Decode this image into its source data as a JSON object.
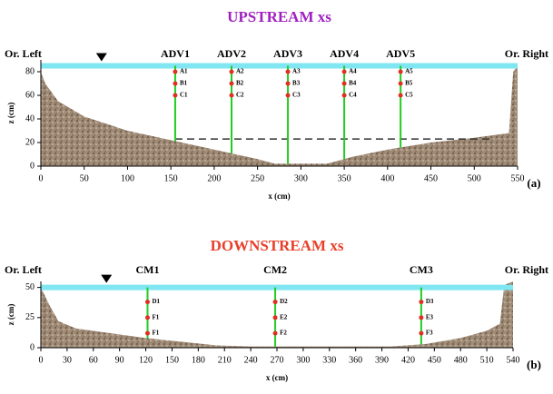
{
  "chart_data": [
    {
      "type": "area",
      "title": "UPSTREAM xs",
      "title_color": "#a020c0",
      "xlabel": "x (cm)",
      "ylabel": "z (cm)",
      "panel_label": "(a)",
      "left_label": "Or. Left",
      "right_label": "Or. Right",
      "xlim": [
        0,
        550
      ],
      "xticks": [
        0,
        50,
        100,
        150,
        200,
        250,
        300,
        350,
        400,
        450,
        500,
        550
      ],
      "ylim": [
        0,
        90
      ],
      "yticks": [
        0,
        20,
        40,
        60,
        80
      ],
      "x": [
        0,
        5,
        20,
        50,
        100,
        150,
        200,
        250,
        270,
        300,
        330,
        360,
        400,
        450,
        500,
        540,
        545,
        550
      ],
      "values": [
        80,
        70,
        55,
        42,
        30,
        22,
        14,
        6,
        2,
        2,
        2,
        8,
        14,
        20,
        24,
        28,
        80,
        85
      ],
      "water_level": 85,
      "surface_marker_x": 70,
      "reference_line": {
        "y": 23,
        "x": [
          155,
          520
        ]
      },
      "verticals": [
        {
          "name": "ADV1",
          "x": 155,
          "points": [
            {
              "label": "A1",
              "z": 80
            },
            {
              "label": "B1",
              "z": 70
            },
            {
              "label": "C1",
              "z": 60
            }
          ]
        },
        {
          "name": "ADV2",
          "x": 220,
          "points": [
            {
              "label": "A2",
              "z": 80
            },
            {
              "label": "B2",
              "z": 70
            },
            {
              "label": "C2",
              "z": 60
            }
          ]
        },
        {
          "name": "ADV3",
          "x": 285,
          "points": [
            {
              "label": "A3",
              "z": 80
            },
            {
              "label": "B3",
              "z": 70
            },
            {
              "label": "C3",
              "z": 60
            }
          ]
        },
        {
          "name": "ADV4",
          "x": 350,
          "points": [
            {
              "label": "A4",
              "z": 80
            },
            {
              "label": "B4",
              "z": 70
            },
            {
              "label": "C4",
              "z": 60
            }
          ]
        },
        {
          "name": "ADV5",
          "x": 415,
          "points": [
            {
              "label": "A5",
              "z": 80
            },
            {
              "label": "B5",
              "z": 70
            },
            {
              "label": "C5",
              "z": 60
            }
          ]
        }
      ]
    },
    {
      "type": "area",
      "title": "DOWNSTREAM xs",
      "title_color": "#e8402a",
      "xlabel": "x (cm)",
      "ylabel": "z (cm)",
      "panel_label": "(b)",
      "left_label": "Or. Left",
      "right_label": "Or. Right",
      "xlim": [
        0,
        540
      ],
      "xticks": [
        0,
        30,
        60,
        90,
        120,
        150,
        180,
        210,
        240,
        270,
        300,
        330,
        360,
        390,
        420,
        450,
        480,
        510,
        540
      ],
      "ylim": [
        0,
        55
      ],
      "yticks": [
        0,
        25,
        50
      ],
      "x": [
        0,
        10,
        20,
        40,
        80,
        120,
        160,
        200,
        240,
        400,
        440,
        480,
        510,
        525,
        530,
        540
      ],
      "values": [
        50,
        35,
        22,
        16,
        12,
        8,
        5,
        2,
        1,
        1,
        3,
        8,
        14,
        20,
        52,
        55
      ],
      "water_level": 50,
      "surface_marker_x": 75,
      "verticals": [
        {
          "name": "CM1",
          "x": 122,
          "points": [
            {
              "label": "D1",
              "z": 38
            },
            {
              "label": "F1",
              "z": 25
            },
            {
              "label": "F1",
              "z": 12
            }
          ]
        },
        {
          "name": "CM2",
          "x": 268,
          "points": [
            {
              "label": "D2",
              "z": 38
            },
            {
              "label": "E2",
              "z": 25
            },
            {
              "label": "F2",
              "z": 12
            }
          ]
        },
        {
          "name": "CM3",
          "x": 435,
          "points": [
            {
              "label": "D3",
              "z": 38
            },
            {
              "label": "E3",
              "z": 25
            },
            {
              "label": "F3",
              "z": 12
            }
          ]
        }
      ]
    }
  ]
}
